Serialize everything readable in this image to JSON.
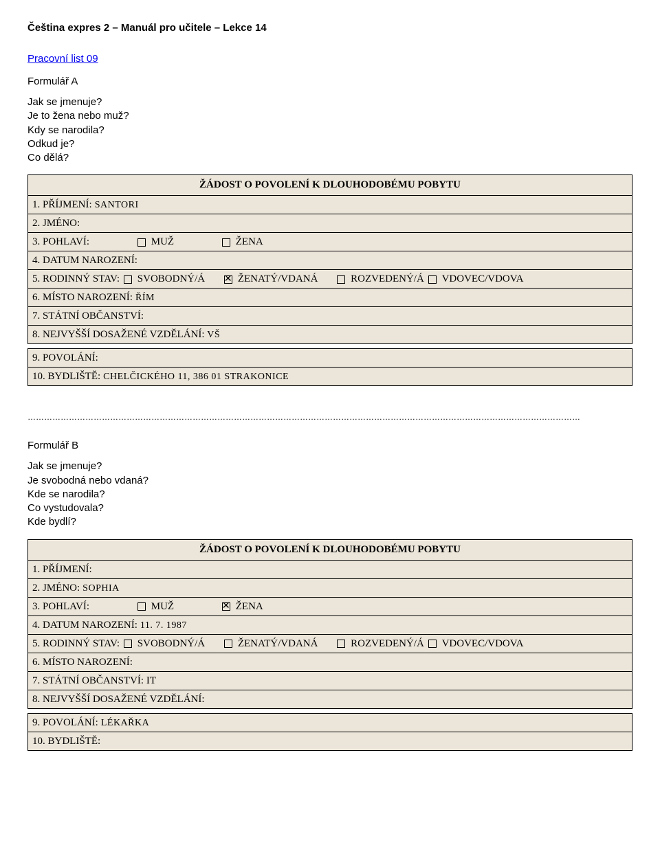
{
  "doc": {
    "title": "Čeština expres 2 – Manuál pro učitele – Lekce 14",
    "worksheet": "Pracovní list 09"
  },
  "colors": {
    "row_bg": "#ece6da",
    "border": "#000000",
    "link": "#0000ee",
    "text": "#000000",
    "background": "#ffffff"
  },
  "formA": {
    "heading": "Formulář A",
    "questions": [
      "Jak se jmenuje?",
      "Je to žena nebo muž?",
      "Kdy se narodila?",
      "Odkud je?",
      "Co dělá?"
    ],
    "title_row": "ŽÁDOST O POVOLENÍ K DLOUHODOBÉMU POBYTU",
    "rows": {
      "r1_label": "1. PŘÍJMENÍ:",
      "r1_value": " SANTORI",
      "r2_label": "2. JMÉNO:",
      "r3_label": "3. POHLAVÍ:",
      "r3_muz": "MUŽ",
      "r3_zena": "ŽENA",
      "r3_muz_checked": false,
      "r3_zena_checked": false,
      "r4_label": "4. DATUM NAROZENÍ:",
      "r5_label": "5. RODINNÝ STAV:",
      "r5_opts": {
        "svobodny": "SVOBODNÝ/Á",
        "zenaty": "ŽENATÝ/VDANÁ",
        "rozvedeny": "ROZVEDENÝ/Á",
        "vdovec": "VDOVEC/VDOVA"
      },
      "r5_checked": {
        "svobodny": false,
        "zenaty": true,
        "rozvedeny": false,
        "vdovec": false
      },
      "r6_label": "6. MÍSTO NAROZENÍ:",
      "r6_value": " ŘÍM",
      "r7_label": "7. STÁTNÍ OBČANSTVÍ:",
      "r8_label": "8. NEJVYŠŠÍ DOSAŽENÉ VZDĚLÁNÍ:",
      "r8_value": " VŠ",
      "r9_label": "9. POVOLÁNÍ:",
      "r10_label": "10. BYDLIŠTĚ:",
      "r10_value": " CHELČICKÉHO 11, 386 01 STRAKONICE"
    }
  },
  "divider": "…………………………………………………………………………………………………………………………………………………………………………………",
  "formB": {
    "heading": "Formulář B",
    "questions": [
      "Jak se jmenuje?",
      "Je svobodná nebo vdaná?",
      "Kde se narodila?",
      "Co vystudovala?",
      "Kde bydlí?"
    ],
    "title_row": "ŽÁDOST O POVOLENÍ K DLOUHODOBÉMU POBYTU",
    "rows": {
      "r1_label": "1. PŘÍJMENÍ:",
      "r2_label": "2. JMÉNO:",
      "r2_value": " SOPHIA",
      "r3_label": "3. POHLAVÍ:",
      "r3_muz": "MUŽ",
      "r3_zena": "ŽENA",
      "r3_muz_checked": false,
      "r3_zena_checked": true,
      "r4_label": "4. DATUM NAROZENÍ:",
      "r4_value": " 11. 7. 1987",
      "r5_label": "5. RODINNÝ STAV:",
      "r5_opts": {
        "svobodny": "SVOBODNÝ/Á",
        "zenaty": "ŽENATÝ/VDANÁ",
        "rozvedeny": "ROZVEDENÝ/Á",
        "vdovec": "VDOVEC/VDOVA"
      },
      "r5_checked": {
        "svobodny": false,
        "zenaty": false,
        "rozvedeny": false,
        "vdovec": false
      },
      "r6_label": "6. MÍSTO NAROZENÍ:",
      "r7_label": "7. STÁTNÍ OBČANSTVÍ: IT",
      "r8_label": "8. NEJVYŠŠÍ DOSAŽENÉ VZDĚLÁNÍ:",
      "r9_label": "9. POVOLÁNÍ:",
      "r9_value": " LÉKAŘKA",
      "r10_label": "10. BYDLIŠTĚ:"
    }
  }
}
